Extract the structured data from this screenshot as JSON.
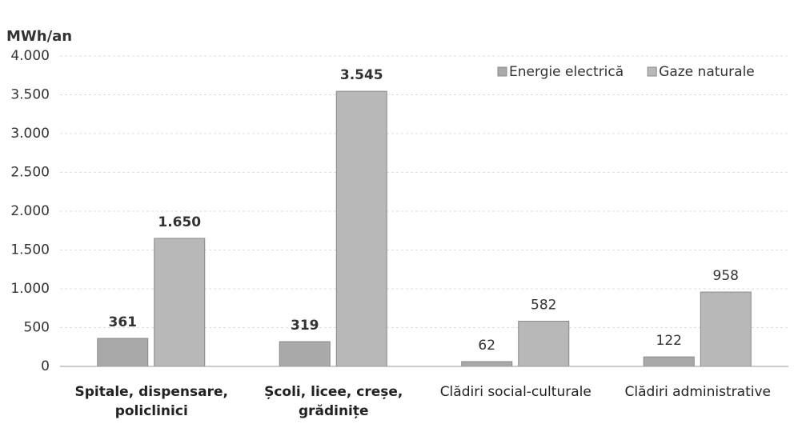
{
  "chart_data": {
    "type": "bar",
    "y_label": "MWh/an",
    "categories": [
      "Spitale, dispensare, policlinici",
      "Școli, licee, creșe, grădinițe",
      "Clădiri social-culturale",
      "Clădiri administrative"
    ],
    "series": [
      {
        "name": "Energie electrică",
        "color": "#a9a9a9",
        "values": [
          361,
          319,
          62,
          122
        ]
      },
      {
        "name": "Gaze naturale",
        "color": "#b8b8b8",
        "values": [
          1650,
          3545,
          582,
          958
        ],
        "value_labels": [
          "1.650",
          "3.545",
          "582",
          "958"
        ]
      }
    ],
    "ylim": [
      0,
      4000
    ],
    "yticks": [
      0,
      500,
      {
        "value": 1000,
        "label": "1.000"
      },
      {
        "value": 1500,
        "label": "1.500"
      },
      {
        "value": 2000,
        "label": "2.000"
      },
      {
        "value": 2500,
        "label": "2.500"
      },
      {
        "value": 3000,
        "label": "3.000"
      },
      {
        "value": 3500,
        "label": "3.500"
      },
      {
        "value": 4000,
        "label": "4.000"
      }
    ],
    "grid": true,
    "legend": "top-right"
  }
}
